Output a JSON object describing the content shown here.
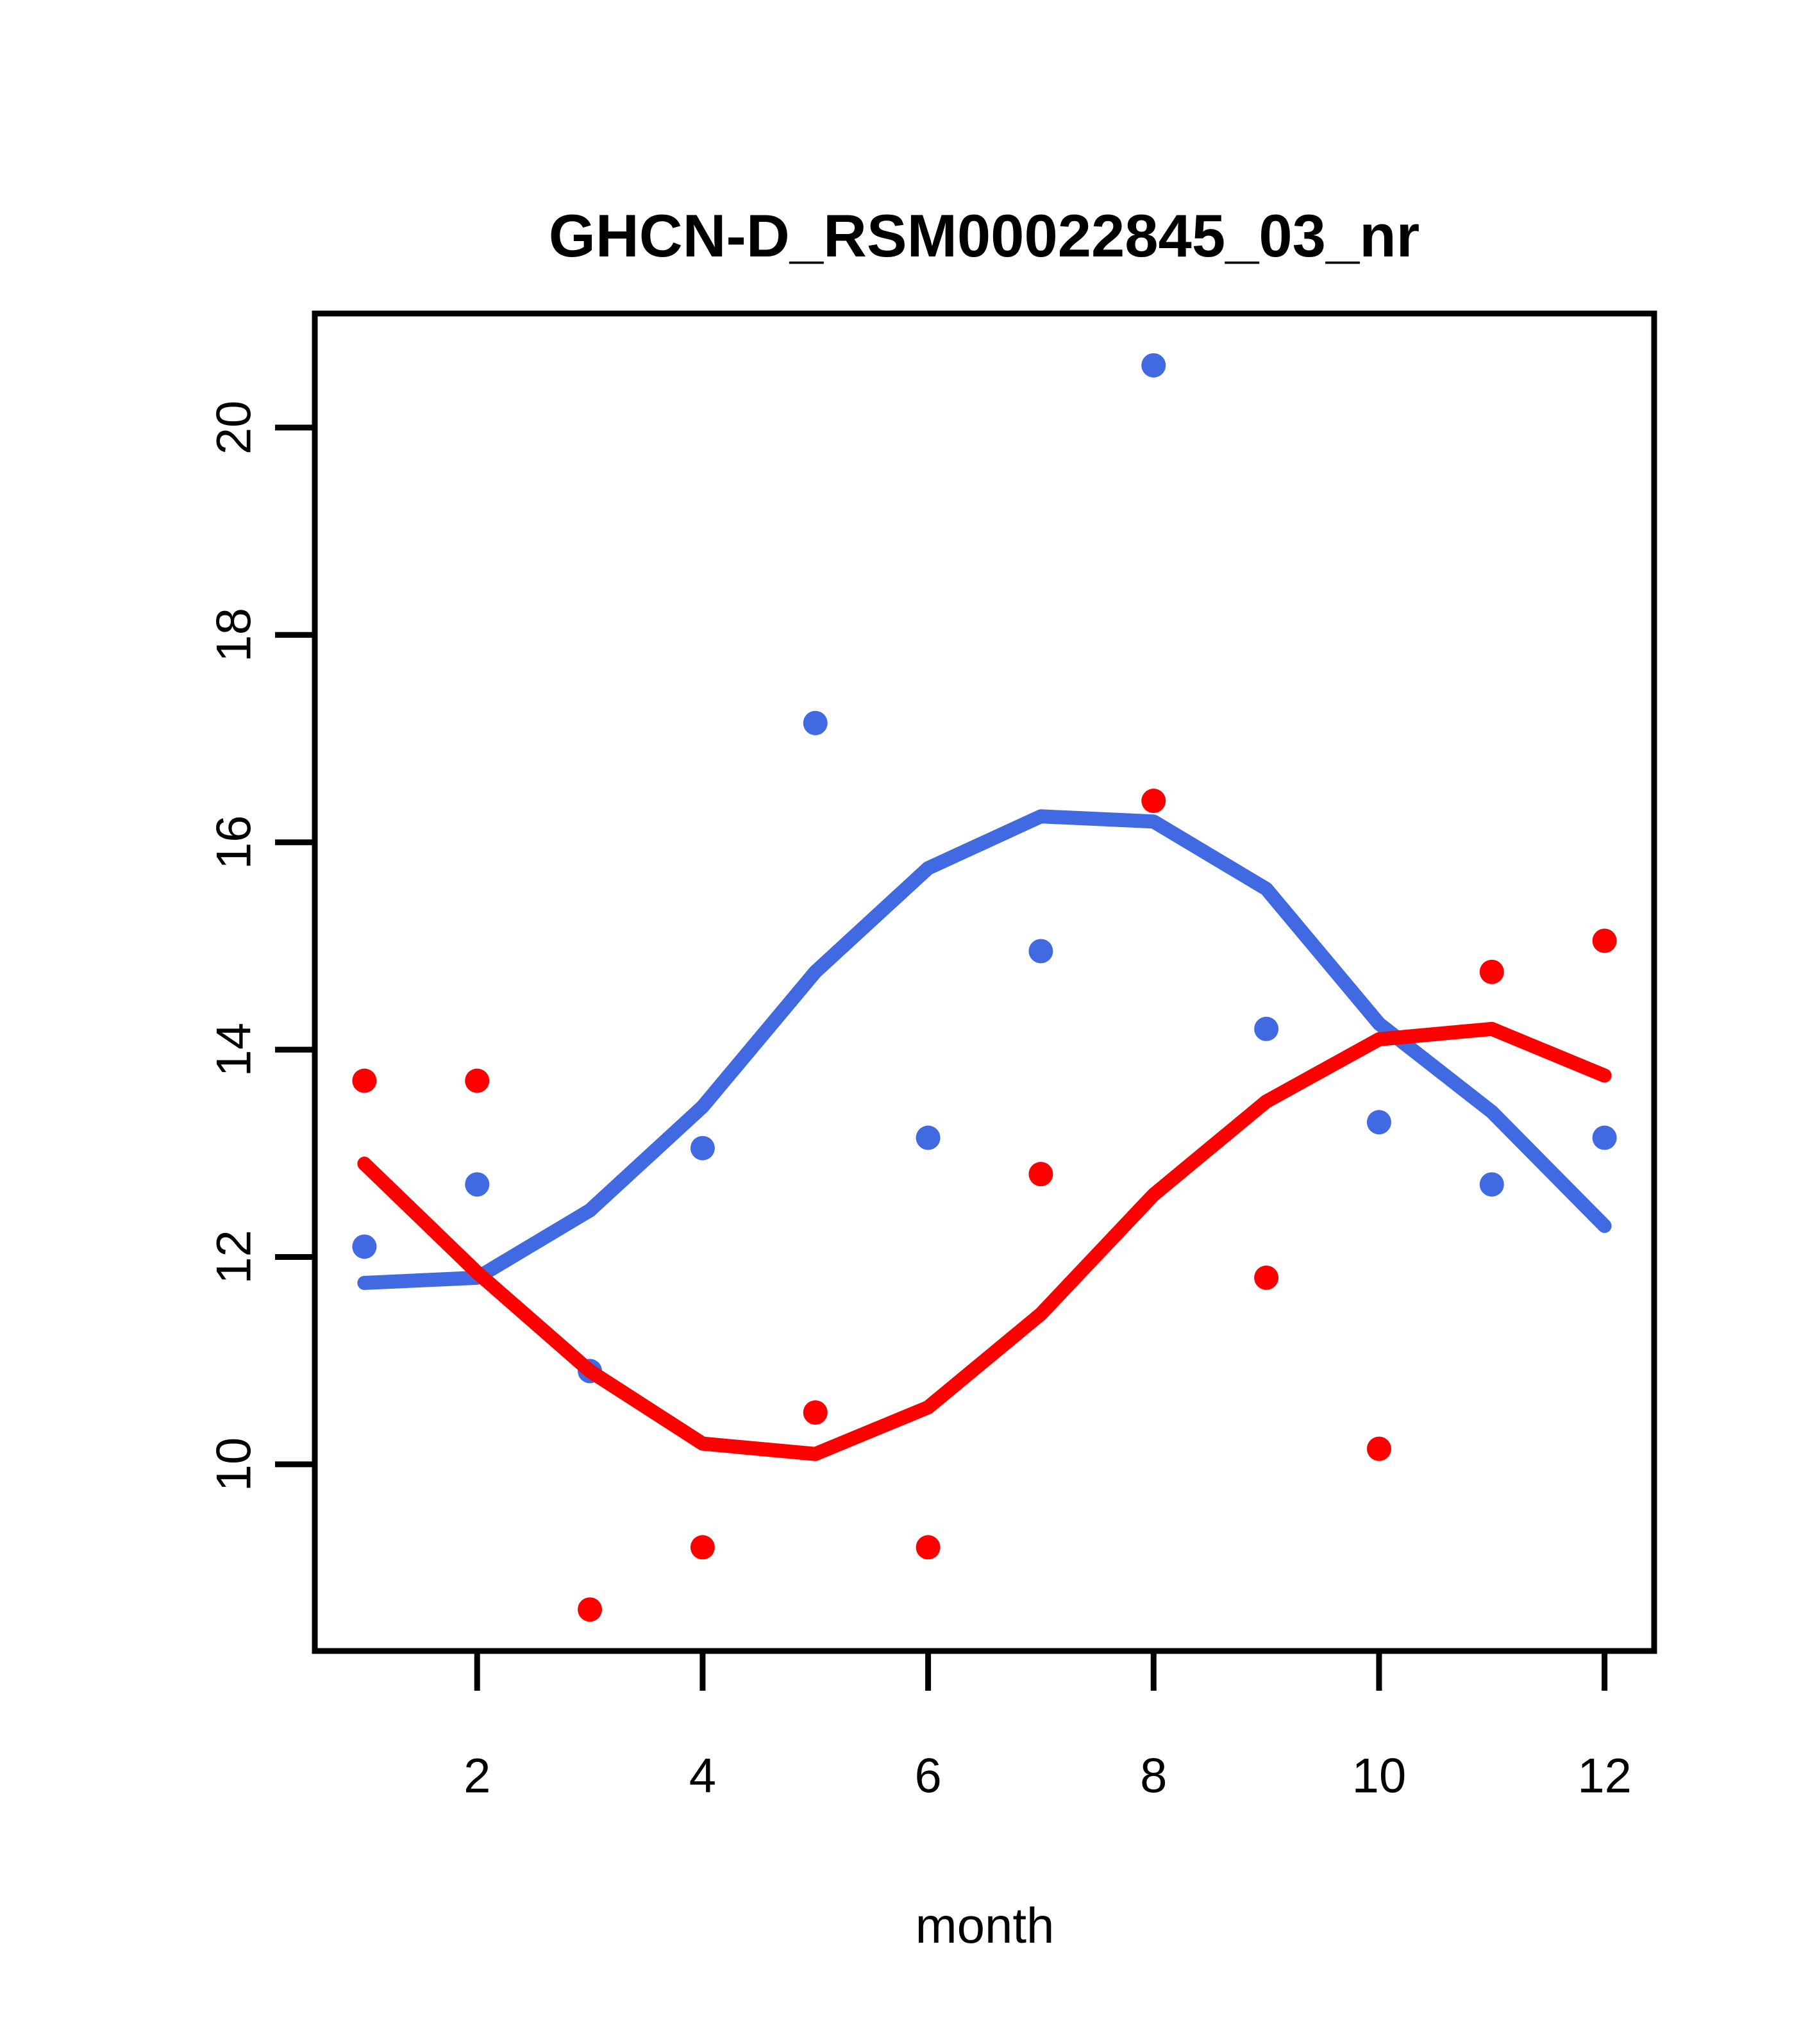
{
  "title": "GHCN-D_RSM00022845_03_nr",
  "chart_data": {
    "type": "scatter",
    "title": "GHCN-D_RSM00022845_03_nr",
    "xlabel": "month",
    "ylabel": "",
    "x_ticks": [
      2,
      4,
      6,
      8,
      10,
      12
    ],
    "y_ticks": [
      10,
      12,
      14,
      16,
      18,
      20
    ],
    "xlim": [
      0.56,
      12.44
    ],
    "ylim": [
      8.2,
      21.1
    ],
    "grid": false,
    "legend": null,
    "x": [
      1,
      2,
      3,
      4,
      5,
      6,
      7,
      8,
      9,
      10,
      11,
      12
    ],
    "series": [
      {
        "name": "blue-points",
        "kind": "points",
        "color": "#4169E1",
        "values": [
          12.1,
          12.7,
          10.9,
          13.05,
          17.15,
          13.15,
          14.95,
          20.6,
          14.2,
          13.3,
          12.7,
          13.15
        ]
      },
      {
        "name": "red-points",
        "kind": "points",
        "color": "#FF0000",
        "values": [
          13.7,
          13.7,
          8.6,
          9.2,
          10.5,
          9.2,
          12.8,
          16.4,
          11.8,
          10.15,
          14.75,
          15.05
        ]
      },
      {
        "name": "blue-smooth-line",
        "kind": "line",
        "color": "#4169E1",
        "values": [
          11.75,
          11.8,
          12.45,
          13.45,
          14.75,
          15.75,
          16.25,
          16.2,
          15.55,
          14.25,
          13.4,
          12.3
        ]
      },
      {
        "name": "red-smooth-line",
        "kind": "line",
        "color": "#FF0000",
        "values": [
          12.9,
          11.85,
          10.9,
          10.2,
          10.1,
          10.55,
          11.45,
          12.6,
          13.5,
          14.1,
          14.2,
          13.75
        ]
      }
    ]
  }
}
